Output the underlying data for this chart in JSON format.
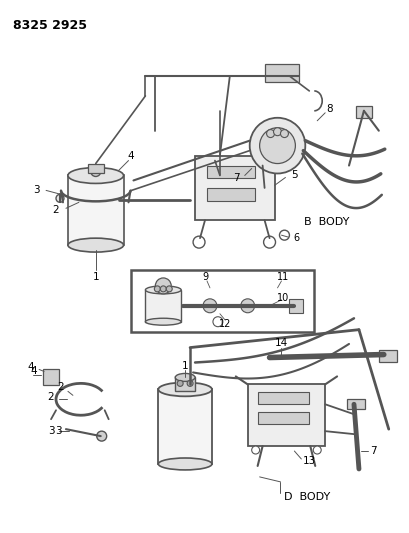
{
  "title": "8325 2925",
  "background_color": "#ffffff",
  "figsize": [
    4.1,
    5.33
  ],
  "dpi": 100,
  "b_body_label": "B  BODY",
  "d_body_label": "D  BODY",
  "line_color": "#555555",
  "text_color": "#000000",
  "light_fill": "#e8e8e8",
  "mid_fill": "#d0d0d0"
}
